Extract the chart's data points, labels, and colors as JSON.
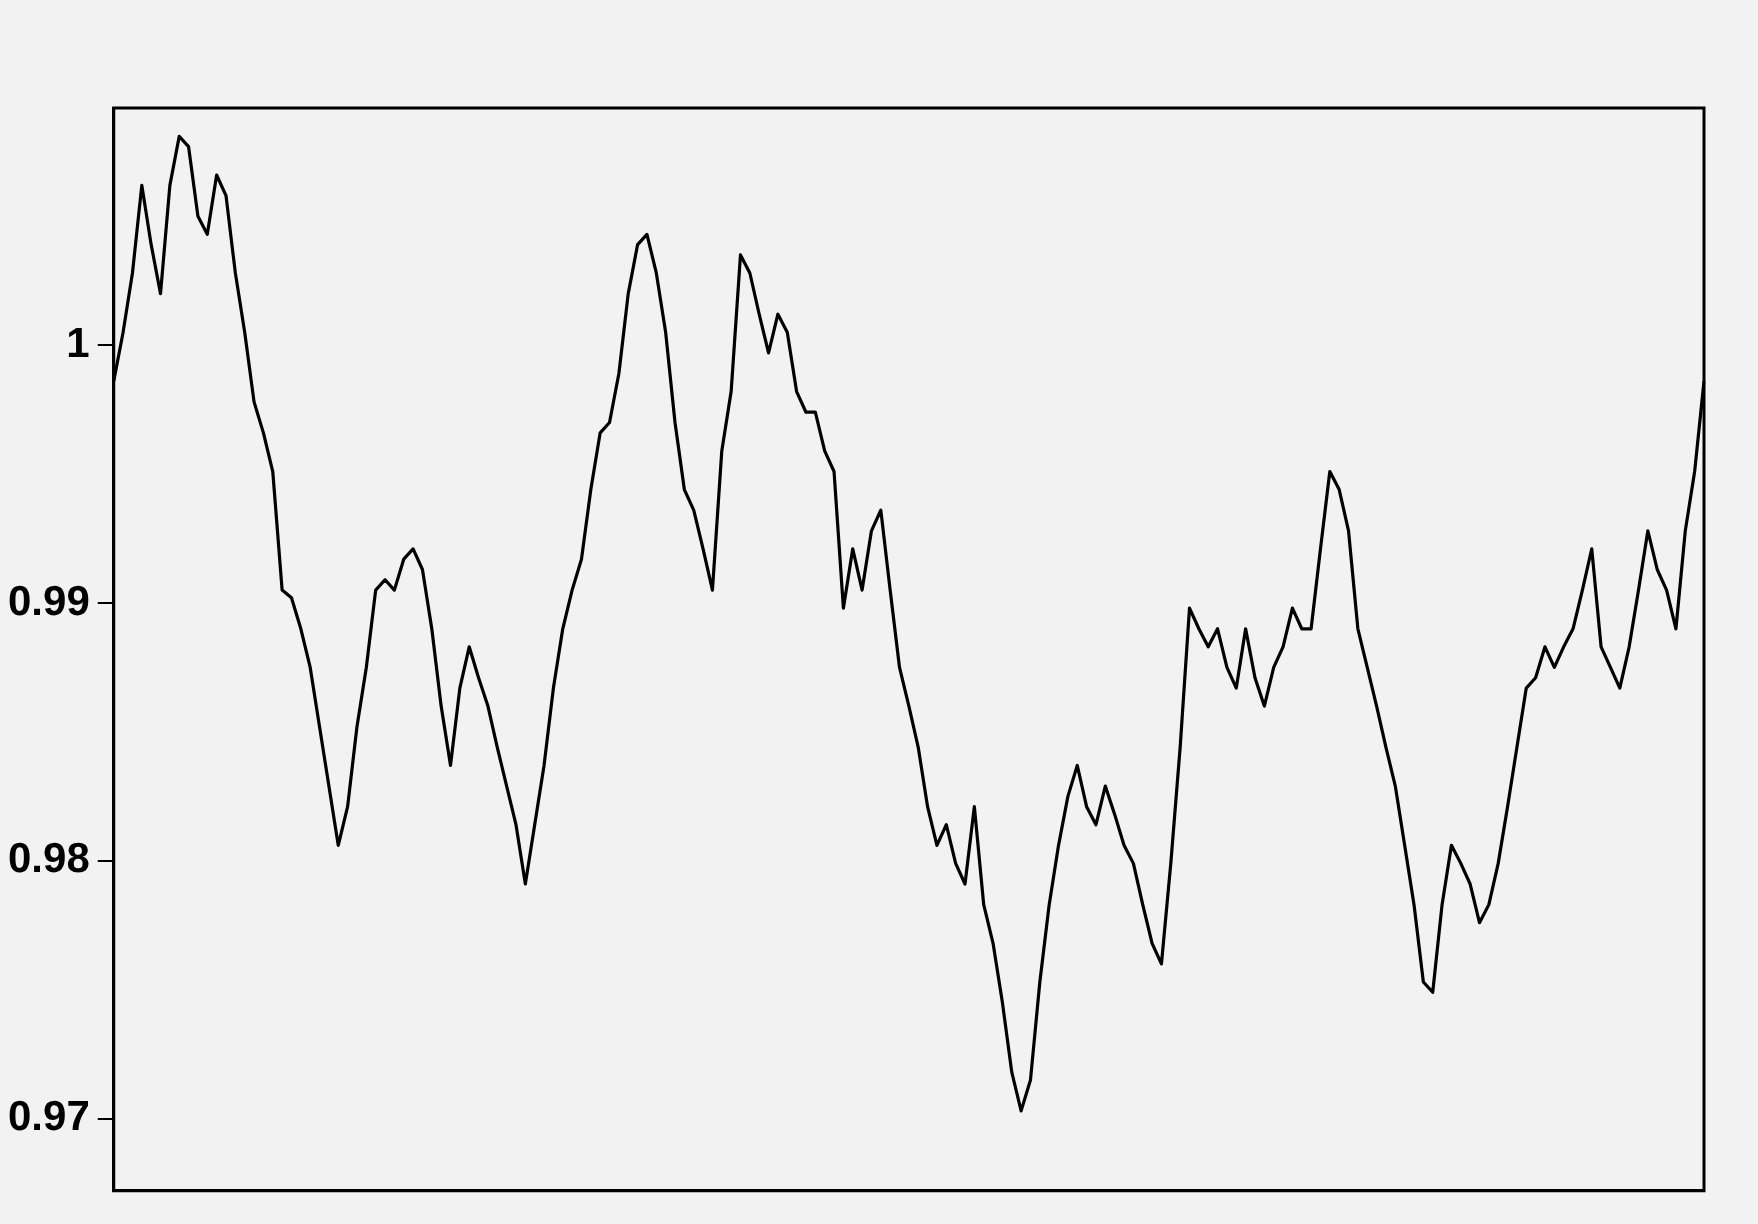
{
  "chart_data": {
    "type": "line",
    "color": "#000000",
    "marker": "none",
    "line_style": "solid",
    "grid": false,
    "legend": false,
    "tick_labels": "y",
    "ylim": [
      0.9672,
      1.0092
    ],
    "yticks": [
      0.97,
      0.98,
      0.99,
      1
    ],
    "categories": [
      null,
      null,
      null,
      null,
      null,
      null,
      null,
      null,
      null,
      null,
      null,
      null,
      null,
      null,
      null,
      null,
      null,
      null,
      null,
      null,
      null,
      null,
      null,
      null,
      null,
      null,
      null,
      null,
      null,
      null,
      null,
      null,
      null,
      null,
      null,
      null,
      null,
      null,
      null,
      null,
      null,
      null,
      null,
      null,
      null,
      null,
      null,
      null,
      null,
      null,
      null,
      null,
      null,
      null,
      null,
      null,
      null,
      null,
      null,
      null,
      null,
      null,
      null,
      null,
      null,
      null,
      null,
      null,
      null,
      null,
      null,
      null,
      null,
      null,
      null,
      null,
      null,
      null,
      null,
      null,
      null,
      null,
      null,
      null,
      null,
      null,
      null,
      null,
      null,
      null,
      null,
      null,
      null,
      null,
      null,
      null,
      null,
      null,
      null,
      null,
      null,
      null,
      null,
      null,
      null,
      null,
      null,
      null,
      null,
      null,
      null,
      null,
      null,
      null,
      null,
      null,
      null,
      null,
      null,
      null,
      null,
      null,
      null,
      null,
      null,
      null,
      null,
      null,
      null,
      null,
      null,
      null,
      null,
      null,
      null,
      null,
      null,
      null,
      null,
      null,
      null,
      null,
      null,
      null,
      null,
      null,
      null,
      null,
      null,
      null,
      null,
      null,
      null,
      null,
      null,
      null,
      null,
      null,
      null,
      null,
      null,
      null,
      null,
      null,
      null,
      null,
      null,
      null,
      null,
      null,
      null
    ],
    "values": [
      0.9986,
      1.0005,
      1.0028,
      1.0062,
      1.0039,
      1.002,
      1.0062,
      1.0081,
      1.0077,
      1.005,
      1.0043,
      1.0066,
      1.0058,
      1.0028,
      1.0005,
      0.9978,
      0.9966,
      0.9951,
      0.9905,
      0.9902,
      0.989,
      0.9875,
      0.9852,
      0.9829,
      0.9806,
      0.9821,
      0.9852,
      0.9875,
      0.9905,
      0.9909,
      0.9905,
      0.9917,
      0.9921,
      0.9913,
      0.989,
      0.986,
      0.9837,
      0.9867,
      0.9883,
      0.9871,
      0.986,
      0.9844,
      0.9829,
      0.9814,
      0.9791,
      0.9814,
      0.9837,
      0.9867,
      0.989,
      0.9905,
      0.9917,
      0.9944,
      0.9966,
      0.997,
      0.9989,
      1.002,
      1.0039,
      1.0043,
      1.0028,
      1.0005,
      0.997,
      0.9944,
      0.9936,
      0.9921,
      0.9905,
      0.9959,
      0.9982,
      1.0035,
      1.0028,
      1.0012,
      0.9997,
      1.0012,
      1.0005,
      0.9982,
      0.9974,
      0.9974,
      0.9959,
      0.9951,
      0.9898,
      0.9921,
      0.9905,
      0.9928,
      0.9936,
      0.9905,
      0.9875,
      0.986,
      0.9844,
      0.9821,
      0.9806,
      0.9814,
      0.9799,
      0.9791,
      0.9821,
      0.9783,
      0.9768,
      0.9745,
      0.9718,
      0.9703,
      0.9715,
      0.9753,
      0.9783,
      0.9806,
      0.9825,
      0.9837,
      0.9821,
      0.9814,
      0.9829,
      0.9818,
      0.9806,
      0.9799,
      0.9783,
      0.9768,
      0.976,
      0.9799,
      0.9844,
      0.9898,
      0.989,
      0.9883,
      0.989,
      0.9875,
      0.9867,
      0.989,
      0.9871,
      0.986,
      0.9875,
      0.9883,
      0.9898,
      0.989,
      0.989,
      0.9921,
      0.9951,
      0.9944,
      0.9928,
      0.989,
      0.9875,
      0.986,
      0.9844,
      0.9829,
      0.9806,
      0.9783,
      0.9753,
      0.9749,
      0.9783,
      0.9806,
      0.9799,
      0.9791,
      0.9776,
      0.9783,
      0.9799,
      0.9821,
      0.9844,
      0.9867,
      0.9871,
      0.9883,
      0.9875,
      0.9883,
      0.989,
      0.9905,
      0.9921,
      0.9883,
      0.9875,
      0.9867,
      0.9883,
      0.9905,
      0.9928,
      0.9913,
      0.9905,
      0.989,
      0.9928,
      0.9951,
      0.9986
    ]
  }
}
